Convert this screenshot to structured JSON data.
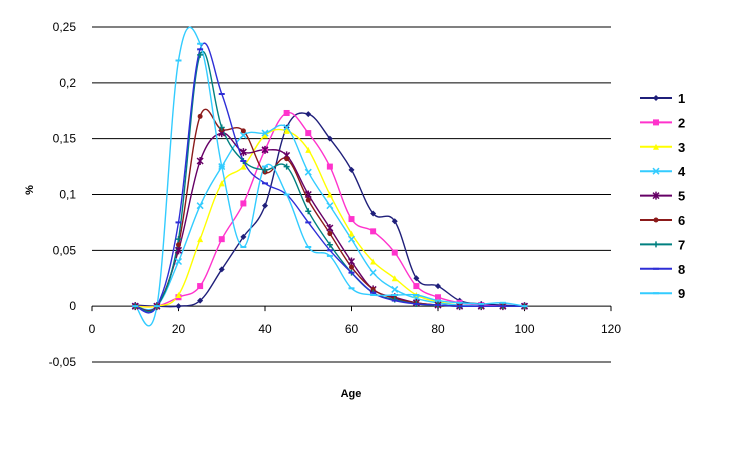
{
  "chart_data": {
    "type": "line",
    "title": "",
    "xlabel": "Age",
    "ylabel": "%",
    "xlim": [
      0,
      120
    ],
    "ylim": [
      -0.05,
      0.25
    ],
    "x_ticks": [
      0,
      20,
      40,
      60,
      80,
      100,
      120
    ],
    "x_tick_labels": [
      "0",
      "20",
      "40",
      "60",
      "80",
      "100",
      "120"
    ],
    "y_ticks": [
      -0.05,
      0,
      0.05,
      0.1,
      0.15,
      0.2,
      0.25
    ],
    "y_tick_labels": [
      "-0,05",
      "0",
      "0,05",
      "0,1",
      "0,15",
      "0,2",
      "0,25"
    ],
    "grid": "horizontal",
    "legend_position": "right",
    "series": [
      {
        "name": "1",
        "color": "#1F1F7A",
        "marker": "diamond",
        "x": [
          10,
          15,
          20,
          25,
          30,
          35,
          40,
          45,
          50,
          55,
          60,
          65,
          70,
          75,
          80,
          85,
          90,
          95,
          100
        ],
        "y": [
          0.001,
          0.0,
          0.0,
          0.005,
          0.033,
          0.062,
          0.09,
          0.16,
          0.172,
          0.15,
          0.122,
          0.083,
          0.076,
          0.025,
          0.018,
          0.005,
          0.002,
          0.001,
          0.0
        ]
      },
      {
        "name": "2",
        "color": "#FF33CC",
        "marker": "square",
        "x": [
          10,
          15,
          20,
          25,
          30,
          35,
          40,
          45,
          50,
          55,
          60,
          65,
          70,
          75,
          80,
          85,
          90,
          95,
          100
        ],
        "y": [
          0.0,
          0.0,
          0.008,
          0.018,
          0.06,
          0.092,
          0.14,
          0.173,
          0.155,
          0.125,
          0.078,
          0.067,
          0.048,
          0.018,
          0.008,
          0.003,
          0.001,
          0.0,
          0.0
        ]
      },
      {
        "name": "3",
        "color": "#FFFF00",
        "marker": "triangle",
        "x": [
          10,
          15,
          20,
          25,
          30,
          35,
          40,
          45,
          50,
          55,
          60,
          65,
          70,
          75,
          80,
          85,
          90,
          95,
          100
        ],
        "y": [
          0.0,
          0.0,
          0.01,
          0.06,
          0.11,
          0.125,
          0.153,
          0.157,
          0.14,
          0.1,
          0.065,
          0.04,
          0.025,
          0.01,
          0.004,
          0.001,
          0.0,
          0.0,
          0.0
        ]
      },
      {
        "name": "4",
        "color": "#33CCFF",
        "marker": "x",
        "x": [
          10,
          15,
          20,
          25,
          30,
          35,
          40,
          45,
          50,
          55,
          60,
          65,
          70,
          75,
          80,
          85,
          90,
          95,
          100
        ],
        "y": [
          0.0,
          0.0,
          0.04,
          0.09,
          0.125,
          0.153,
          0.155,
          0.16,
          0.12,
          0.09,
          0.06,
          0.03,
          0.015,
          0.007,
          0.003,
          0.001,
          0.0,
          0.0,
          0.0
        ]
      },
      {
        "name": "5",
        "color": "#660066",
        "marker": "star",
        "x": [
          10,
          15,
          20,
          25,
          30,
          35,
          40,
          45,
          50,
          55,
          60,
          65,
          70,
          75,
          80,
          85,
          90,
          95,
          100
        ],
        "y": [
          0.0,
          0.0,
          0.05,
          0.13,
          0.155,
          0.138,
          0.14,
          0.135,
          0.1,
          0.07,
          0.04,
          0.015,
          0.008,
          0.003,
          0.001,
          0.0,
          0.0,
          0.0,
          0.0
        ]
      },
      {
        "name": "6",
        "color": "#8B1A1A",
        "marker": "circle",
        "x": [
          10,
          15,
          20,
          25,
          30,
          35,
          40,
          45,
          50,
          55,
          60,
          65,
          70,
          75,
          80,
          85,
          90,
          95,
          100
        ],
        "y": [
          0.0,
          0.0,
          0.055,
          0.17,
          0.158,
          0.157,
          0.12,
          0.132,
          0.095,
          0.065,
          0.035,
          0.015,
          0.007,
          0.003,
          0.001,
          0.0,
          0.0,
          0.0,
          0.0
        ]
      },
      {
        "name": "7",
        "color": "#008080",
        "marker": "plus",
        "x": [
          10,
          15,
          20,
          25,
          30,
          35,
          40,
          45,
          50,
          55,
          60,
          65,
          70,
          75,
          80,
          85,
          90,
          95,
          100
        ],
        "y": [
          0.0,
          0.0,
          0.06,
          0.225,
          0.16,
          0.13,
          0.122,
          0.125,
          0.085,
          0.055,
          0.03,
          0.012,
          0.006,
          0.002,
          0.001,
          0.0,
          0.0,
          0.0,
          0.0
        ]
      },
      {
        "name": "8",
        "color": "#2E2ED6",
        "marker": "dash",
        "x": [
          10,
          15,
          20,
          25,
          30,
          35,
          40,
          45,
          50,
          55,
          60,
          65,
          70,
          75,
          80,
          85,
          90,
          95,
          100
        ],
        "y": [
          0.0,
          0.0,
          0.075,
          0.23,
          0.19,
          0.13,
          0.11,
          0.1,
          0.075,
          0.05,
          0.03,
          0.012,
          0.005,
          0.002,
          0.001,
          0.0,
          0.0,
          0.0,
          0.0
        ]
      },
      {
        "name": "9",
        "color": "#33CCFF",
        "marker": "dash",
        "x": [
          10,
          15,
          20,
          25,
          30,
          35,
          40,
          45,
          50,
          55,
          60,
          65,
          70,
          75,
          80,
          85,
          90,
          95,
          100
        ],
        "y": [
          0.0,
          0.0,
          0.22,
          0.235,
          0.125,
          0.053,
          0.125,
          0.1,
          0.053,
          0.045,
          0.016,
          0.01,
          0.01,
          0.01,
          0.005,
          0.003,
          0.002,
          0.003,
          0.0
        ]
      }
    ]
  }
}
